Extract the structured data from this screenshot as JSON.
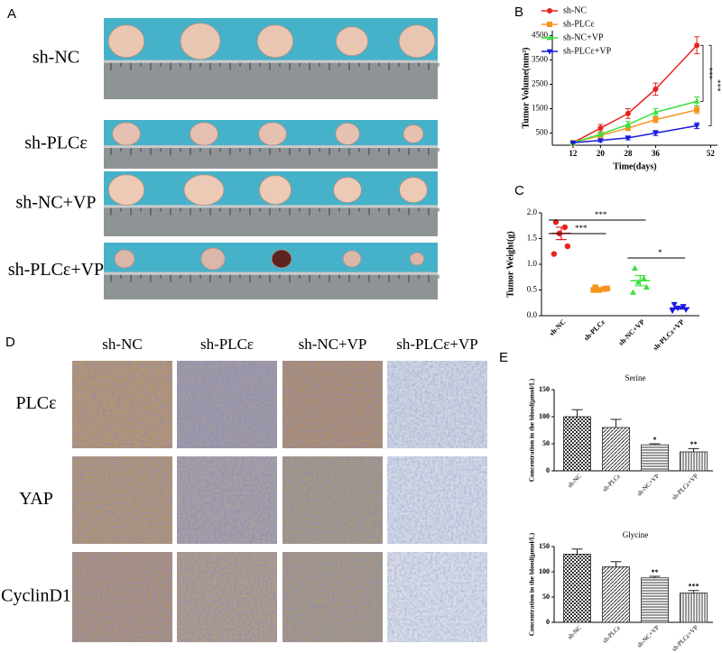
{
  "panel_a": {
    "label": "A",
    "rows": [
      "sh-NC",
      "sh-PLCε",
      "sh-NC+VP",
      "sh-PLCε+VP"
    ]
  },
  "panel_d": {
    "label": "D",
    "columns": [
      "sh-NC",
      "sh-PLCε",
      "sh-NC+VP",
      "sh-PLCε+VP"
    ],
    "rows": [
      "PLCε",
      "YAP",
      "CyclinD1"
    ]
  },
  "chart_data": [
    {
      "type": "line",
      "panel_label": "B",
      "y_label": "Tumor Volume(mm³)",
      "x_label": "Time(days)",
      "x": [
        12,
        20,
        28,
        36,
        48
      ],
      "xlim": [
        6,
        54
      ],
      "xticks": [
        12,
        20,
        28,
        36,
        52
      ],
      "ylim": [
        0,
        4700
      ],
      "yticks": [
        500,
        1500,
        2500,
        3500,
        4500
      ],
      "legend": "upper left",
      "annotations": [
        "***",
        "***"
      ],
      "series": [
        {
          "name": "sh-NC",
          "color": "#e8221d",
          "marker": "circle",
          "values": [
            100,
            700,
            1300,
            2300,
            4100
          ],
          "errors": [
            0,
            150,
            200,
            250,
            350
          ]
        },
        {
          "name": "sh-PLCε",
          "color": "#f7931e",
          "marker": "square",
          "values": [
            100,
            400,
            700,
            1050,
            1450
          ],
          "errors": [
            0,
            80,
            100,
            120,
            150
          ]
        },
        {
          "name": "sh-NC+VP",
          "color": "#3ee03e",
          "marker": "triangle-up",
          "values": [
            100,
            450,
            850,
            1350,
            1800
          ],
          "errors": [
            0,
            80,
            120,
            150,
            180
          ]
        },
        {
          "name": "sh-PLCε+VP",
          "color": "#1a1ae0",
          "marker": "triangle-down",
          "values": [
            100,
            200,
            300,
            500,
            800
          ],
          "errors": [
            0,
            60,
            80,
            100,
            120
          ]
        }
      ]
    },
    {
      "type": "strip",
      "panel_label": "C",
      "y_label": "Tumor Weight(g)",
      "categories": [
        "sh-NC",
        "sh-PLCε",
        "sh-NC+VP",
        "sh-PLCε+VP"
      ],
      "colors": [
        "#e8221d",
        "#f7931e",
        "#3ee03e",
        "#1a1ae0"
      ],
      "markers": [
        "circle",
        "square",
        "triangle-up",
        "triangle-down"
      ],
      "points": [
        [
          1.82,
          1.72,
          1.6,
          1.35,
          1.2
        ],
        [
          0.55,
          0.52,
          0.5,
          0.53,
          0.5
        ],
        [
          0.92,
          0.72,
          0.65,
          0.55,
          0.45
        ],
        [
          0.22,
          0.18,
          0.15,
          0.12,
          0.1
        ]
      ],
      "means": [
        1.6,
        0.52,
        0.68,
        0.15
      ],
      "sems": [
        0.12,
        0.02,
        0.1,
        0.02
      ],
      "ylim": [
        0,
        2.0
      ],
      "yticks": [
        {
          "value": 0,
          "label": "0.0"
        },
        {
          "value": 0.5,
          "label": "0.5"
        },
        {
          "value": 1,
          "label": "1.0"
        },
        {
          "value": 1.5,
          "label": "1.5"
        },
        {
          "value": 2,
          "label": "2.0"
        }
      ],
      "annotations": [
        "***",
        "***",
        "*"
      ]
    },
    {
      "type": "bar",
      "panel_label": "E",
      "title": "Serine",
      "y_label": "Concentration in the blood(μmol/L)",
      "categories": [
        "sh-NC",
        "sh-PLCε",
        "sh-NC+VP",
        "sh-PLCε+VP"
      ],
      "values": [
        100,
        80,
        48,
        35
      ],
      "errors": [
        13,
        15,
        2,
        6
      ],
      "significance": [
        null,
        null,
        "*",
        "**"
      ],
      "patterns": [
        "checker",
        "diagonal",
        "horizontal",
        "vertical"
      ],
      "ylim": [
        0,
        150
      ],
      "yticks": [
        0,
        50,
        100,
        150
      ]
    },
    {
      "type": "bar",
      "title": "Glycine",
      "y_label": "Concentration in the blood(μmol/L)",
      "categories": [
        "sh-NC",
        "sh-PLCε",
        "sh-NC+VP",
        "sh-PLCε+VP"
      ],
      "values": [
        135,
        110,
        88,
        58
      ],
      "errors": [
        10,
        10,
        3,
        5
      ],
      "significance": [
        null,
        null,
        "**",
        "***"
      ],
      "patterns": [
        "checker",
        "diagonal",
        "horizontal",
        "vertical"
      ],
      "ylim": [
        0,
        150
      ],
      "yticks": [
        0,
        50,
        100,
        150
      ]
    }
  ]
}
